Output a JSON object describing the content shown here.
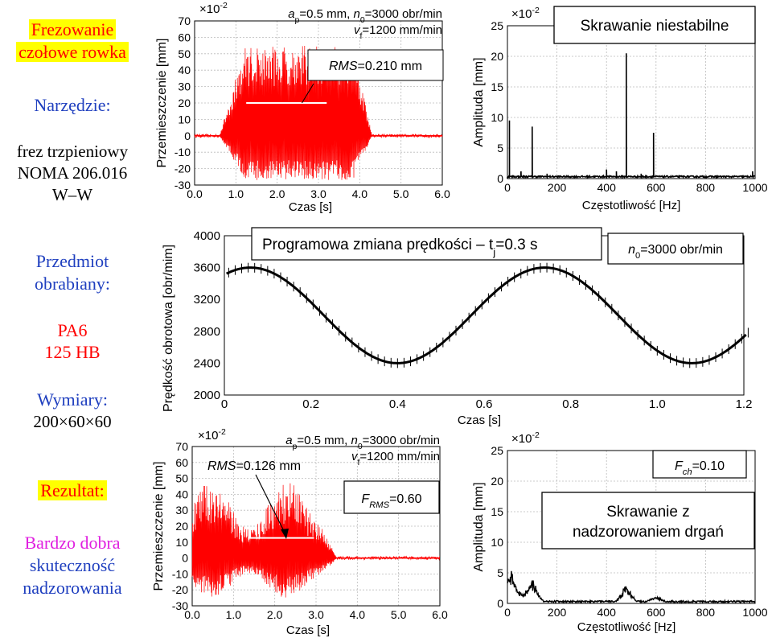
{
  "sidebar": {
    "title": [
      "Frezowanie",
      "czołowe rowka"
    ],
    "tool_label": "Narzędzie:",
    "tool_value": [
      "frez trzpieniowy",
      "NOMA 206.016",
      "W–W"
    ],
    "workpiece_label": [
      "Przedmiot",
      "obrabiany:"
    ],
    "material": [
      "PA6",
      "125 HB"
    ],
    "dims_label": "Wymiary:",
    "dims_value": "200×60×60",
    "result_label": "Rezultat:",
    "result_value": [
      "Bardzo dobra",
      "skuteczność",
      "nadzorowania"
    ]
  },
  "colors": {
    "signal": "#ff0000",
    "accent_blue": "#1f3fbf",
    "magenta": "#e020e0",
    "highlight": "#ffff00"
  },
  "chart_data": [
    {
      "id": "top-left",
      "type": "line",
      "multiplier": "×10",
      "multiplier_exp": "-2",
      "ylabel": "Przemieszczenie [mm]",
      "xlabel": "Czas [s]",
      "xlim": [
        0,
        6
      ],
      "ylim": [
        -30,
        70
      ],
      "xticks": [
        "0.0",
        "1.0",
        "2.0",
        "3.0",
        "4.0",
        "5.0",
        "6.0"
      ],
      "yticks": [
        "70",
        "60",
        "50",
        "40",
        "30",
        "20",
        "10",
        "0",
        "-10",
        "-20",
        "-30"
      ],
      "params_line1": "ap=0.5 mm, n0=3000 obr/min",
      "params_line2": "vf=1200 mm/min",
      "rms_label": "RMS=0.210 mm",
      "rms_value": 0.21,
      "signal": {
        "cut_start": 0.6,
        "cut_end": 4.3,
        "envelope_max": 55,
        "envelope_min": -27
      }
    },
    {
      "id": "top-right",
      "type": "line",
      "multiplier": "×10",
      "multiplier_exp": "-2",
      "ylabel": "Amplituda [mm]",
      "xlabel": "Częstotliwość [Hz]",
      "xlim": [
        0,
        1000
      ],
      "ylim": [
        0,
        25
      ],
      "xticks": [
        "0",
        "200",
        "400",
        "600",
        "800",
        "1000"
      ],
      "yticks": [
        "25",
        "20",
        "15",
        "10",
        "5",
        "0"
      ],
      "title": "Skrawanie niestabilne",
      "peaks": [
        {
          "x": 8,
          "y": 9.5
        },
        {
          "x": 55,
          "y": 1.2
        },
        {
          "x": 100,
          "y": 8.5
        },
        {
          "x": 160,
          "y": 0.8
        },
        {
          "x": 400,
          "y": 1.5
        },
        {
          "x": 440,
          "y": 1.2
        },
        {
          "x": 480,
          "y": 20.5
        },
        {
          "x": 540,
          "y": 0.8
        },
        {
          "x": 590,
          "y": 7.5
        },
        {
          "x": 990,
          "y": 1.2
        }
      ]
    },
    {
      "id": "middle",
      "type": "line",
      "ylabel": "Prędkość obrotowa [obr/mim]",
      "xlabel": "Czas [s]",
      "xlim": [
        0,
        1.2
      ],
      "ylim": [
        2000,
        4000
      ],
      "xticks": [
        "0",
        "0.2",
        "0.4",
        "0.6",
        "0.8",
        "1.0",
        "1.2"
      ],
      "yticks": [
        "4000",
        "3600",
        "3200",
        "2800",
        "2400",
        "2000"
      ],
      "title_main": "Programowa zmiana prędkości – t",
      "title_sub": "j",
      "title_tail": "=0.3 s",
      "n0_label": "n0=3000 obr/min",
      "mean": 3000,
      "amplitude": 600,
      "period": 0.68,
      "phase_peak_t": 0.06
    },
    {
      "id": "bottom-left",
      "type": "line",
      "multiplier": "×10",
      "multiplier_exp": "-2",
      "ylabel": "Przemieszczenie [mm]",
      "xlabel": "Czas [s]",
      "xlim": [
        0,
        6
      ],
      "ylim": [
        -30,
        70
      ],
      "xticks": [
        "0.0",
        "1.0",
        "2.0",
        "3.0",
        "4.0",
        "5.0",
        "6.0"
      ],
      "yticks": [
        "70",
        "60",
        "50",
        "40",
        "30",
        "20",
        "10",
        "0",
        "-10",
        "-20",
        "-30"
      ],
      "params_line1": "ap=0.5 mm, n0=3000 obr/min",
      "params_line2": "vf=1200 mm/min",
      "rms_label": "RMS=0.126 mm",
      "rms_value": 0.126,
      "frms_label": "FRMS=0.60",
      "frms_value": 0.6,
      "signal": {
        "cut_start": 0.0,
        "cut_end": 3.5,
        "envelope_max": 48,
        "envelope_min": -25
      }
    },
    {
      "id": "bottom-right",
      "type": "line",
      "multiplier": "×10",
      "multiplier_exp": "-2",
      "ylabel": "Amplituda [mm]",
      "xlabel": "Częstotliwość [Hz]",
      "xlim": [
        0,
        1000
      ],
      "ylim": [
        0,
        25
      ],
      "xticks": [
        "0",
        "200",
        "400",
        "600",
        "800",
        "1000"
      ],
      "yticks": [
        "25",
        "20",
        "15",
        "10",
        "5",
        "0"
      ],
      "title": "Skrawanie z nadzorowaniem drgań",
      "title_line1": "Skrawanie z",
      "title_line2": "nadzorowaniem drgań",
      "fch_label": "Fch=0.10",
      "fch_value": 0.1,
      "bumps": [
        {
          "x": 10,
          "y": 4.5
        },
        {
          "x": 50,
          "y": 1.0
        },
        {
          "x": 100,
          "y": 3.0
        },
        {
          "x": 480,
          "y": 2.2
        },
        {
          "x": 600,
          "y": 0.6
        }
      ]
    }
  ]
}
